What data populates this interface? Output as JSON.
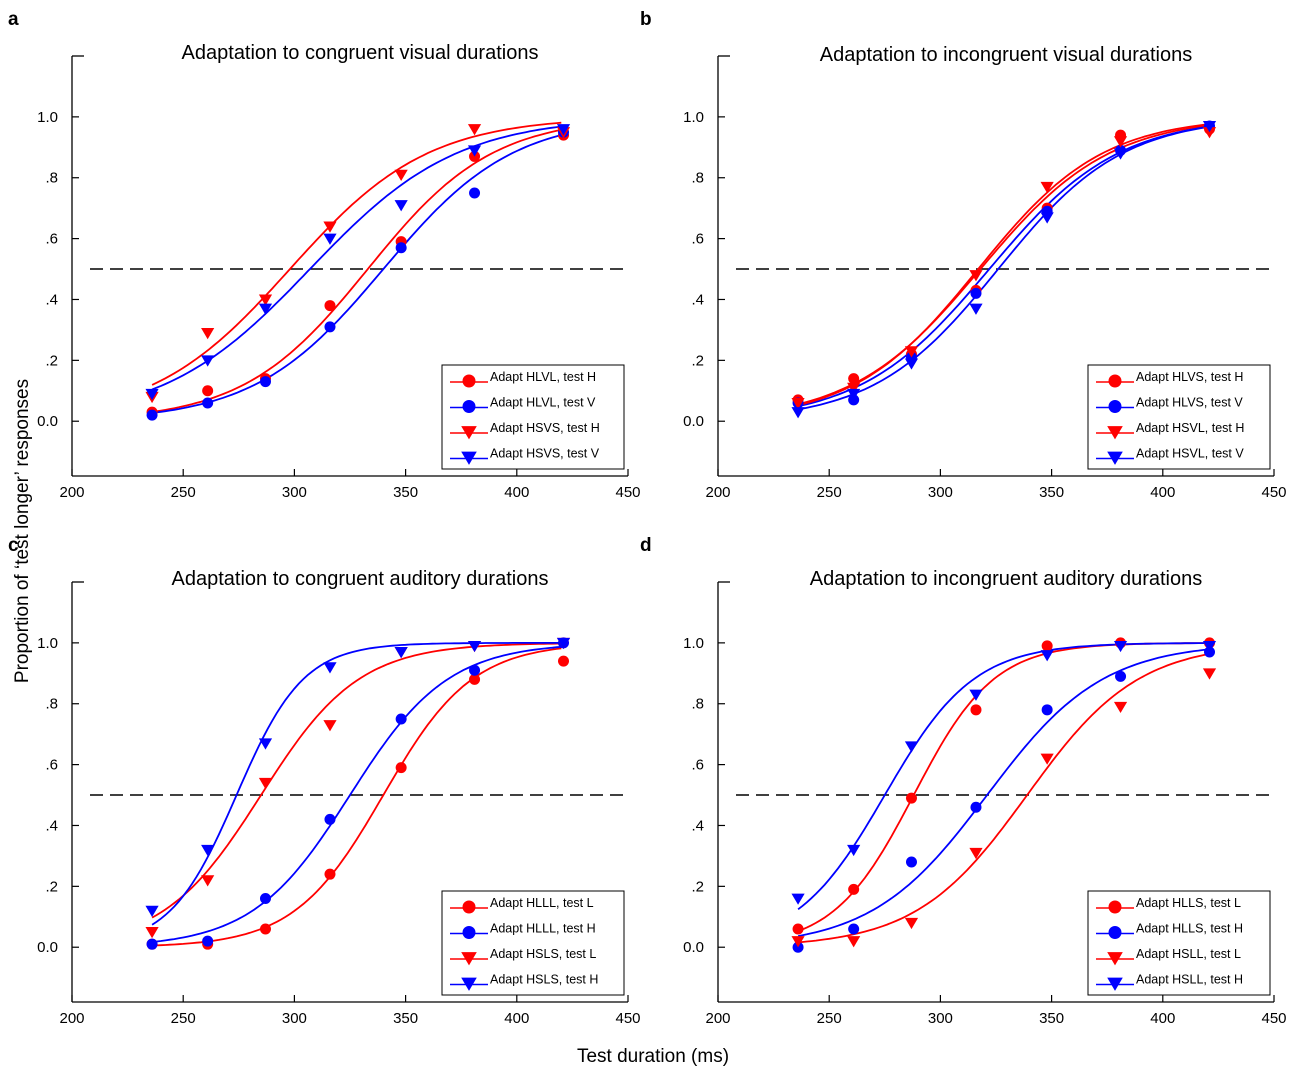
{
  "figure": {
    "ylabel": "Proportion of ‘test longer’ responses",
    "xlabel": "Test duration (ms)"
  },
  "chart_data": [
    {
      "panel": "a",
      "type": "scatter",
      "title": "Adaptation to congruent visual durations",
      "xlim": [
        200,
        450
      ],
      "ylim": [
        -0.18,
        1.2
      ],
      "xticks": [
        "200",
        "250",
        "300",
        "350",
        "400",
        "450"
      ],
      "yticks": [
        "0.0",
        ".2",
        ".4",
        ".6",
        ".8",
        "1.0"
      ],
      "reference_line": 0.5,
      "legend_position": "bottom-right",
      "series": [
        {
          "name": "Adapt HLVL, test H",
          "color": "#ff0000",
          "marker": "circle",
          "x": [
            236,
            261,
            287,
            316,
            348,
            381,
            421
          ],
          "y": [
            0.03,
            0.1,
            0.14,
            0.38,
            0.59,
            0.87,
            0.94
          ],
          "fit": {
            "pse": 333,
            "width": 28
          }
        },
        {
          "name": "Adapt HLVL, test V",
          "color": "#0000ff",
          "marker": "circle",
          "x": [
            236,
            261,
            287,
            316,
            348,
            381,
            421
          ],
          "y": [
            0.02,
            0.06,
            0.13,
            0.31,
            0.57,
            0.75,
            0.95
          ],
          "fit": {
            "pse": 340,
            "width": 29
          }
        },
        {
          "name": "Adapt HSVS, test H",
          "color": "#ff0000",
          "marker": "triangle",
          "x": [
            236,
            261,
            287,
            316,
            348,
            381,
            421
          ],
          "y": [
            0.08,
            0.29,
            0.4,
            0.64,
            0.81,
            0.96,
            0.95
          ],
          "fit": {
            "pse": 298,
            "width": 31
          }
        },
        {
          "name": "Adapt HSVS, test V",
          "color": "#0000ff",
          "marker": "triangle",
          "x": [
            236,
            261,
            287,
            316,
            348,
            381,
            421
          ],
          "y": [
            0.09,
            0.2,
            0.37,
            0.6,
            0.71,
            0.89,
            0.96
          ],
          "fit": {
            "pse": 307,
            "width": 33
          }
        }
      ]
    },
    {
      "panel": "b",
      "type": "scatter",
      "title": "Adaptation to incongruent visual durations",
      "xlim": [
        200,
        450
      ],
      "ylim": [
        -0.18,
        1.2
      ],
      "xticks": [
        "200",
        "250",
        "300",
        "350",
        "400",
        "450"
      ],
      "yticks": [
        "0.0",
        ".2",
        ".4",
        ".6",
        ".8",
        "1.0"
      ],
      "reference_line": 0.5,
      "legend_position": "bottom-right",
      "series": [
        {
          "name": "Adapt HLVS, test H",
          "color": "#ff0000",
          "marker": "circle",
          "x": [
            236,
            261,
            287,
            316,
            348,
            381,
            421
          ],
          "y": [
            0.07,
            0.14,
            0.22,
            0.43,
            0.7,
            0.94,
            0.96
          ],
          "fit": {
            "pse": 318,
            "width": 29
          }
        },
        {
          "name": "Adapt HLVS, test V",
          "color": "#0000ff",
          "marker": "circle",
          "x": [
            236,
            261,
            287,
            316,
            348,
            381,
            421
          ],
          "y": [
            0.06,
            0.07,
            0.21,
            0.42,
            0.69,
            0.89,
            0.97
          ],
          "fit": {
            "pse": 322,
            "width": 29
          }
        },
        {
          "name": "Adapt HSVL, test H",
          "color": "#ff0000",
          "marker": "triangle",
          "x": [
            236,
            261,
            287,
            316,
            348,
            381,
            421
          ],
          "y": [
            0.06,
            0.11,
            0.23,
            0.48,
            0.77,
            0.92,
            0.95
          ],
          "fit": {
            "pse": 317,
            "width": 28
          }
        },
        {
          "name": "Adapt HSVL, test V",
          "color": "#0000ff",
          "marker": "triangle",
          "x": [
            236,
            261,
            287,
            316,
            348,
            381,
            421
          ],
          "y": [
            0.03,
            0.09,
            0.19,
            0.37,
            0.67,
            0.88,
            0.97
          ],
          "fit": {
            "pse": 326,
            "width": 28
          }
        }
      ]
    },
    {
      "panel": "c",
      "type": "scatter",
      "title": "Adaptation to congruent auditory durations",
      "xlim": [
        200,
        450
      ],
      "ylim": [
        -0.18,
        1.2
      ],
      "xticks": [
        "200",
        "250",
        "300",
        "350",
        "400",
        "450"
      ],
      "yticks": [
        "0.0",
        ".2",
        ".4",
        ".6",
        ".8",
        "1.0"
      ],
      "reference_line": 0.5,
      "legend_position": "bottom-right",
      "series": [
        {
          "name": "Adapt HLLL, test L",
          "color": "#ff0000",
          "marker": "circle",
          "x": [
            236,
            261,
            287,
            316,
            348,
            381,
            421
          ],
          "y": [
            0.01,
            0.01,
            0.06,
            0.24,
            0.59,
            0.88,
            0.94
          ],
          "fit": {
            "pse": 340,
            "width": 20
          }
        },
        {
          "name": "Adapt HLLL, test H",
          "color": "#0000ff",
          "marker": "circle",
          "x": [
            236,
            261,
            287,
            316,
            348,
            381,
            421
          ],
          "y": [
            0.01,
            0.02,
            0.16,
            0.42,
            0.75,
            0.91,
            1.0
          ],
          "fit": {
            "pse": 325,
            "width": 22
          }
        },
        {
          "name": "Adapt HSLS, test L",
          "color": "#ff0000",
          "marker": "triangle",
          "x": [
            236,
            261,
            287,
            316,
            348,
            381,
            421
          ],
          "y": [
            0.05,
            0.22,
            0.54,
            0.73,
            0.97,
            0.99,
            1.0
          ],
          "fit": {
            "pse": 285,
            "width": 22
          }
        },
        {
          "name": "Adapt HSLS, test H",
          "color": "#0000ff",
          "marker": "triangle",
          "x": [
            236,
            261,
            287,
            316,
            348,
            381,
            421
          ],
          "y": [
            0.12,
            0.32,
            0.67,
            0.92,
            0.97,
            0.99,
            1.0
          ],
          "fit": {
            "pse": 274,
            "width": 15
          }
        }
      ]
    },
    {
      "panel": "d",
      "type": "scatter",
      "title": "Adaptation to incongruent auditory durations",
      "xlim": [
        200,
        450
      ],
      "ylim": [
        -0.18,
        1.2
      ],
      "xticks": [
        "200",
        "250",
        "300",
        "350",
        "400",
        "450"
      ],
      "yticks": [
        "0.0",
        ".2",
        ".4",
        ".6",
        ".8",
        "1.0"
      ],
      "reference_line": 0.5,
      "legend_position": "bottom-right",
      "series": [
        {
          "name": "Adapt HLLS, test L",
          "color": "#ff0000",
          "marker": "circle",
          "x": [
            236,
            261,
            287,
            316,
            348,
            381,
            421
          ],
          "y": [
            0.06,
            0.19,
            0.49,
            0.78,
            0.99,
            1.0,
            1.0
          ],
          "fit": {
            "pse": 288,
            "width": 18
          }
        },
        {
          "name": "Adapt HLLS, test H",
          "color": "#0000ff",
          "marker": "circle",
          "x": [
            236,
            261,
            287,
            316,
            348,
            381,
            421
          ],
          "y": [
            0.0,
            0.06,
            0.28,
            0.46,
            0.78,
            0.89,
            0.97
          ],
          "fit": {
            "pse": 321,
            "width": 26
          }
        },
        {
          "name": "Adapt HSLL, test L",
          "color": "#ff0000",
          "marker": "triangle",
          "x": [
            236,
            261,
            287,
            316,
            348,
            381,
            421
          ],
          "y": [
            0.02,
            0.02,
            0.08,
            0.31,
            0.62,
            0.79,
            0.9
          ],
          "fit": {
            "pse": 339,
            "width": 25
          }
        },
        {
          "name": "Adapt HSLL, test H",
          "color": "#0000ff",
          "marker": "triangle",
          "x": [
            236,
            261,
            287,
            316,
            348,
            381,
            421
          ],
          "y": [
            0.16,
            0.32,
            0.66,
            0.83,
            0.96,
            0.99,
            0.99
          ],
          "fit": {
            "pse": 275,
            "width": 20
          }
        }
      ]
    }
  ]
}
